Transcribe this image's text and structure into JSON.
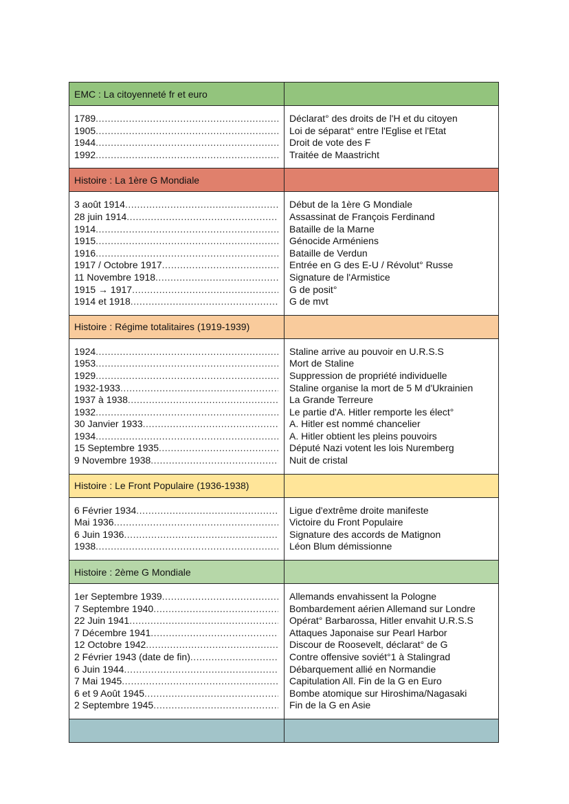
{
  "sections": [
    {
      "title": "EMC : La citoyenneté fr et euro",
      "color": "#93c47d",
      "rows": [
        [
          "1789",
          "Déclarat° des droits de l'H et du citoyen"
        ],
        [
          "1905",
          "Loi de séparat° entre l'Eglise et l'Etat"
        ],
        [
          "1944",
          "Droit de vote des F"
        ],
        [
          "1992",
          "Traitée de Maastricht"
        ]
      ]
    },
    {
      "title": "Histoire : La 1ère G Mondiale",
      "color": "#e0806c",
      "rows": [
        [
          "3 août 1914",
          "Début de la 1ère G Mondiale"
        ],
        [
          "28 juin 1914",
          "Assassinat de François Ferdinand"
        ],
        [
          "1914",
          "Bataille de la Marne"
        ],
        [
          "1915",
          "Génocide Arméniens"
        ],
        [
          "1916",
          "Bataille de Verdun"
        ],
        [
          "1917 / Octobre 1917",
          "Entrée en G des E-U / Révolut° Russe"
        ],
        [
          "11 Novembre 1918",
          "Signature de l'Armistice"
        ],
        [
          "1915 → 1917",
          "G de posit°"
        ],
        [
          "1914 et 1918 ",
          "G de mvt"
        ]
      ]
    },
    {
      "title": "Histoire : Régime totalitaires (1919-1939)",
      "color": "#f9cb9c",
      "rows": [
        [
          "1924",
          "Staline arrive au pouvoir en U.R.S.S"
        ],
        [
          "1953",
          "Mort de Staline"
        ],
        [
          "1929",
          "Suppression de propriété individuelle"
        ],
        [
          "1932-1933",
          "Staline organise la mort de 5 M d'Ukrainien"
        ],
        [
          "1937 à 1938",
          "La Grande Terreure"
        ],
        [
          "1932",
          "Le partie d'A. Hitler remporte les élect°"
        ],
        [
          "30 Janvier 1933",
          "A. Hitler est nommé chancelier"
        ],
        [
          "1934",
          "A. Hitler obtient les pleins pouvoirs"
        ],
        [
          "15 Septembre 1935",
          "Député Nazi votent les lois Nuremberg"
        ],
        [
          "9 Novembre 1938",
          "Nuit de cristal"
        ]
      ]
    },
    {
      "title": "Histoire : Le Front Populaire (1936-1938)",
      "color": "#ffe599",
      "rows": [
        [
          "6 Février 1934",
          "Ligue d'extrême droite manifeste"
        ],
        [
          "Mai 1936",
          "Victoire du Front Populaire"
        ],
        [
          "6 Juin 1936",
          "Signature des accords de Matignon"
        ],
        [
          "1938",
          "Léon Blum démissionne"
        ]
      ]
    },
    {
      "title": "Histoire : 2ème G Mondiale",
      "color": "#b6d7a8",
      "rows": [
        [
          "1er Septembre 1939",
          "Allemands envahissent la Pologne"
        ],
        [
          "7 Septembre 1940",
          "Bombardement aérien Allemand sur Londre"
        ],
        [
          "22 Juin 1941",
          "Opérat° Barbarossa, Hitler envahit U.R.S.S"
        ],
        [
          "7 Décembre 1941",
          "Attaques Japonaise sur Pearl Harbor"
        ],
        [
          "12 Octobre 1942",
          "Discour de Roosevelt, déclarat° de G"
        ],
        [
          "2 Février 1943 (date de fin)",
          "Contre offensive soviét°1 à Stalingrad"
        ],
        [
          "6 Juin 1944",
          "Débarquement allié en Normandie"
        ],
        [
          "7 Mai 1945",
          "Capitulation All. Fin de la G en Euro"
        ],
        [
          "6 et 9 Août 1945",
          "Bombe atomique sur Hiroshima/Nagasaki"
        ],
        [
          "2 Septembre 1945",
          "Fin de la G en Asie"
        ]
      ]
    }
  ],
  "footer_color": "#a2c4c9"
}
